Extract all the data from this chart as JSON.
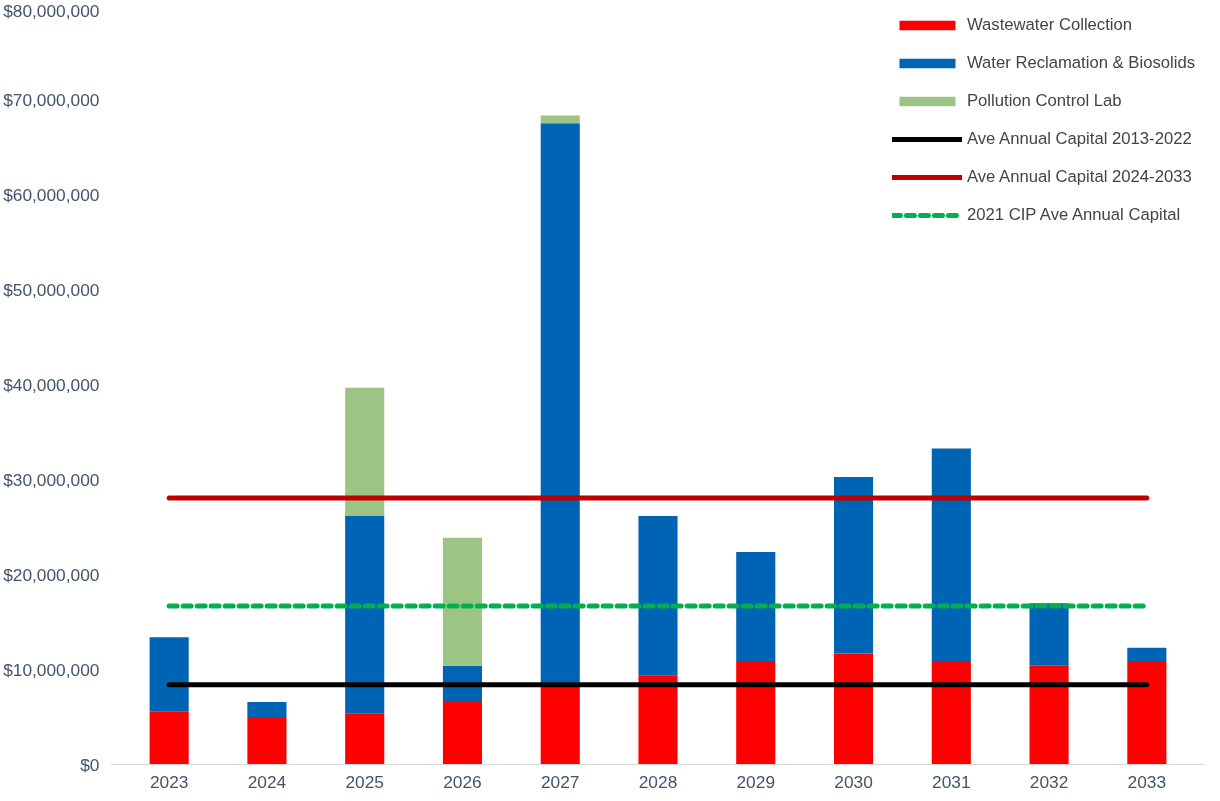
{
  "chart_data": {
    "type": "bar",
    "stacked": true,
    "categories": [
      "2023",
      "2024",
      "2025",
      "2026",
      "2027",
      "2028",
      "2029",
      "2030",
      "2031",
      "2032",
      "2033"
    ],
    "series": [
      {
        "name": "Wastewater Collection",
        "color": "#ff0000",
        "values": [
          5600000,
          5000000,
          5400000,
          6600000,
          8300000,
          9400000,
          10800000,
          11700000,
          10800000,
          10400000,
          10800000
        ]
      },
      {
        "name": "Water Reclamation & Biosolids",
        "color": "#0064b4",
        "values": [
          7800000,
          1600000,
          20800000,
          3800000,
          59300000,
          16800000,
          11600000,
          18600000,
          22500000,
          6600000,
          1500000
        ]
      },
      {
        "name": "Pollution Control Lab",
        "color": "#9cc484",
        "values": [
          0,
          0,
          13500000,
          13500000,
          800000,
          0,
          0,
          0,
          0,
          0,
          0
        ]
      }
    ],
    "ref_lines": [
      {
        "axis": "y",
        "value": 8400000,
        "label": "Ave Annual Capital 2013-2022",
        "color": "#000000",
        "line_style": "solid"
      },
      {
        "axis": "y",
        "value": 28100000,
        "label": "Ave Annual Capital 2024-2033",
        "color": "#c00000",
        "line_style": "solid"
      },
      {
        "axis": "y",
        "value": 16700000,
        "label": "2021 CIP Ave Annual Capital",
        "color": "#00b050",
        "line_style": "dashed"
      }
    ],
    "ylim": [
      0,
      80000000
    ],
    "yticks": [
      {
        "value": 0,
        "label": "$0"
      },
      {
        "value": 10000000,
        "label": "$10,000,000"
      },
      {
        "value": 20000000,
        "label": "$20,000,000"
      },
      {
        "value": 30000000,
        "label": "$30,000,000"
      },
      {
        "value": 40000000,
        "label": "$40,000,000"
      },
      {
        "value": 50000000,
        "label": "$50,000,000"
      },
      {
        "value": 60000000,
        "label": "$60,000,000"
      },
      {
        "value": 70000000,
        "label": "$70,000,000"
      },
      {
        "value": 80000000,
        "label": "$80,000,000"
      }
    ],
    "grid": false,
    "legend": "top right"
  }
}
